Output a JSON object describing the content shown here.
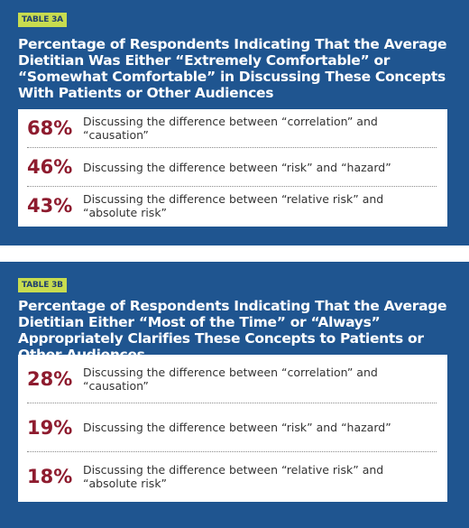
{
  "tables": [
    {
      "label": "TABLE 3A",
      "title": "Percentage of Respondents Indicating That the Average Dietitian Was Either “Extremely Comfortable” or “Somewhat Comfortable” in Discussing These Concepts With Patients or Other Audiences",
      "rows": [
        [
          "68%",
          "Discussing the difference between “correlation” and “causation”"
        ],
        [
          "46%",
          "Discussing the difference between “risk” and “hazard”"
        ],
        [
          "43%",
          "Discussing the difference between “relative risk” and “absolute risk”"
        ]
      ]
    },
    {
      "label": "TABLE 3B",
      "title": "Percentage of Respondents Indicating That the Average Dietitian Either “Most of the Time” or “Always” Appropriately Clarifies These Concepts to Patients or Other Audiences",
      "rows": [
        [
          "28%",
          "Discussing the difference between “correlation” and “causation”"
        ],
        [
          "19%",
          "Discussing the difference between “risk” and “hazard”"
        ],
        [
          "18%",
          "Discussing the difference between “relative risk” and “absolute risk”"
        ]
      ]
    }
  ]
}
